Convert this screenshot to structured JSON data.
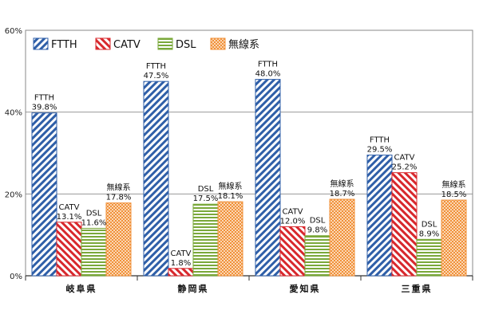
{
  "chart_data": {
    "type": "bar",
    "categories": [
      "岐阜県",
      "静岡県",
      "愛知県",
      "三重県"
    ],
    "ylim": [
      0,
      60
    ],
    "yticks": [
      0,
      20,
      40,
      60
    ],
    "ytick_labels": [
      "0%",
      "20%",
      "40%",
      "60%"
    ],
    "grid": true,
    "legend_position": "top-left",
    "series": [
      {
        "name": "FTTH",
        "values": [
          39.8,
          47.5,
          48.0,
          29.5
        ],
        "labels": [
          "39.8%",
          "47.5%",
          "48.0%",
          "29.5%"
        ],
        "color": "#2f5fa8",
        "pattern": "diagonal-stripes"
      },
      {
        "name": "CATV",
        "values": [
          13.1,
          1.8,
          12.0,
          25.2
        ],
        "labels": [
          "13.1%",
          "1.8%",
          "12.0%",
          "25.2%"
        ],
        "color": "#d8282d",
        "pattern": "diagonal-stripes"
      },
      {
        "name": "DSL",
        "values": [
          11.6,
          17.5,
          9.8,
          8.9
        ],
        "labels": [
          "11.6%",
          "17.5%",
          "9.8%",
          "8.9%"
        ],
        "color": "#7aa83a",
        "pattern": "horizontal-stripes"
      },
      {
        "name": "無線系",
        "values": [
          17.8,
          18.1,
          18.7,
          18.5
        ],
        "labels": [
          "17.8%",
          "18.1%",
          "18.7%",
          "18.5%"
        ],
        "color": "#f0913a",
        "pattern": "checker"
      }
    ]
  }
}
